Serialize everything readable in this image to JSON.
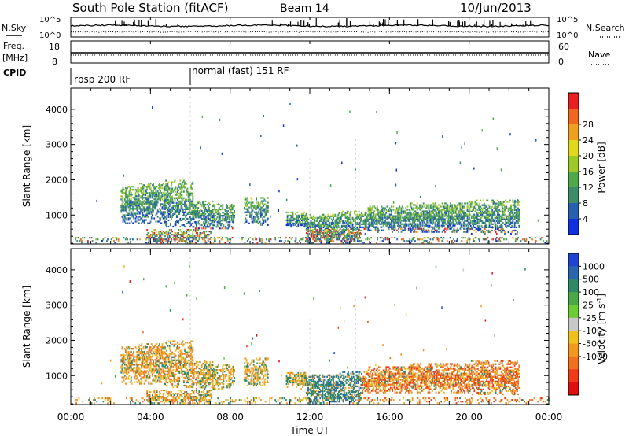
{
  "header": {
    "station": "South Pole Station (fitACF)",
    "beam": "Beam 14",
    "date": "10/Jun/2013"
  },
  "labels": {
    "nsky": "N.Sky",
    "nsearch": "N.Search",
    "freq": "Freq.",
    "mhz": "[MHz]",
    "nave": "Nave",
    "cpid": "CPID",
    "tick_1e5": "10^5",
    "tick_1e0": "10^0",
    "freq_tick_hi": "18",
    "freq_tick_lo": "8",
    "nave_tick_hi": "60",
    "nave_tick_lo": "0"
  },
  "cpid_segments": [
    {
      "start_hour": 0,
      "label": "rbsp 200 RF"
    },
    {
      "start_hour": 6,
      "label": "normal (fast) 151 RF"
    }
  ],
  "chart_data": [
    {
      "type": "heatmap",
      "name": "power",
      "ylabel": "Slant Range [km]",
      "xlim": [
        0,
        24
      ],
      "ylim": [
        180,
        4600
      ],
      "yticks": [
        1000,
        2000,
        3000,
        4000
      ],
      "colorbar": {
        "label": "Power [dB]",
        "ticks": [
          "4",
          "8",
          "12",
          "16",
          "20",
          "24",
          "28"
        ],
        "colors": [
          "#1030e0",
          "#2860b0",
          "#3c8c6c",
          "#50a84c",
          "#9cc828",
          "#e0d81c",
          "#f0a020",
          "#f06820",
          "#e82020"
        ]
      }
    },
    {
      "type": "heatmap",
      "name": "velocity",
      "xlabel": "Time UT",
      "ylabel": "Slant Range [km]",
      "xlim": [
        0,
        24
      ],
      "ylim": [
        180,
        4600
      ],
      "yticks": [
        1000,
        2000,
        3000,
        4000
      ],
      "xticks": [
        "00:00",
        "04:00",
        "08:00",
        "12:00",
        "16:00",
        "20:00",
        "00:00"
      ],
      "colorbar": {
        "label": "Velocity [m s^-1]",
        "ticks": [
          "1000",
          "500",
          "100",
          "25",
          "-25",
          "-100",
          "-500",
          "-1000"
        ],
        "colors": [
          "#2044d0",
          "#2a66b0",
          "#2f8868",
          "#4aa84a",
          "#6ccc34",
          "#c8c8c8",
          "#f0c01c",
          "#f09820",
          "#f07020",
          "#f03a1a",
          "#e01010"
        ]
      }
    }
  ]
}
